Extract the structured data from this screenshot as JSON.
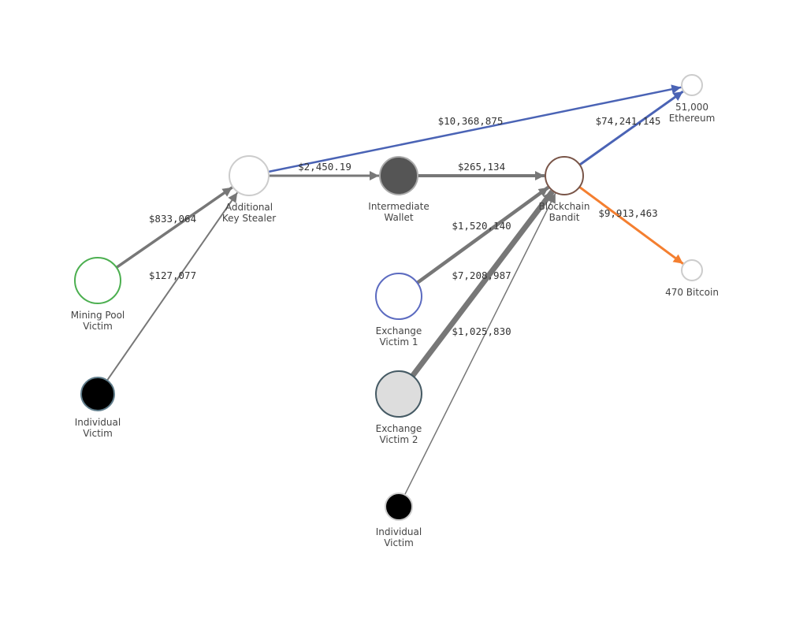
{
  "colors": {
    "edge_default": "#777777",
    "ethereum": "#4a63b5",
    "bitcoin": "#f47f30"
  },
  "nodes": [
    {
      "id": "aks",
      "label_lines": [
        "Additional",
        "Key Stealer"
      ],
      "fill": "#ffffff",
      "stroke": "#cccccc"
    },
    {
      "id": "iw",
      "label_lines": [
        "Intermediate",
        "Wallet"
      ],
      "fill": "#555555",
      "stroke": "#aaaaaa"
    },
    {
      "id": "bb",
      "label_lines": [
        "Blockchain",
        "Bandit"
      ],
      "fill": "#ffffff",
      "stroke": "#795548"
    },
    {
      "id": "eth",
      "label_lines": [
        "51,000",
        "Ethereum"
      ],
      "fill": "#ffffff",
      "stroke": "#cccccc"
    },
    {
      "id": "btc",
      "label_lines": [
        "470 Bitcoin"
      ],
      "fill": "#ffffff",
      "stroke": "#cccccc"
    },
    {
      "id": "mpv",
      "label_lines": [
        "Mining Pool",
        "Victim"
      ],
      "fill": "#ffffff",
      "stroke": "#4caf50"
    },
    {
      "id": "iv1",
      "label_lines": [
        "Individual",
        "Victim"
      ],
      "fill": "#000000",
      "stroke": "#607d8b"
    },
    {
      "id": "ev1",
      "label_lines": [
        "Exchange",
        "Victim 1"
      ],
      "fill": "#ffffff",
      "stroke": "#5c6bc0"
    },
    {
      "id": "ev2",
      "label_lines": [
        "Exchange",
        "Victim 2"
      ],
      "fill": "#dddddd",
      "stroke": "#455a64"
    },
    {
      "id": "iv2",
      "label_lines": [
        "Individual",
        "Victim"
      ],
      "fill": "#000000",
      "stroke": "#cccccc"
    }
  ],
  "edges": [
    {
      "source": "aks",
      "target": "eth",
      "label": "$10,368,875",
      "color": "ethereum"
    },
    {
      "source": "aks",
      "target": "iw",
      "label": "$2,450.19",
      "color": "edge_default"
    },
    {
      "source": "iw",
      "target": "bb",
      "label": "$265,134",
      "color": "edge_default"
    },
    {
      "source": "bb",
      "target": "eth",
      "label": "$74,241,145",
      "color": "ethereum"
    },
    {
      "source": "mpv",
      "target": "aks",
      "label": "$833,064",
      "color": "edge_default"
    },
    {
      "source": "iv1",
      "target": "aks",
      "label": "$127,077",
      "color": "edge_default"
    },
    {
      "source": "ev1",
      "target": "bb",
      "label": "$1,520,140",
      "color": "edge_default"
    },
    {
      "source": "ev2",
      "target": "bb",
      "label": "$7,208,987",
      "color": "edge_default"
    },
    {
      "source": "iv2",
      "target": "bb",
      "label": "$1,025,830",
      "color": "edge_default"
    },
    {
      "source": "bb",
      "target": "btc",
      "label": "$9,913,463",
      "color": "bitcoin"
    }
  ]
}
